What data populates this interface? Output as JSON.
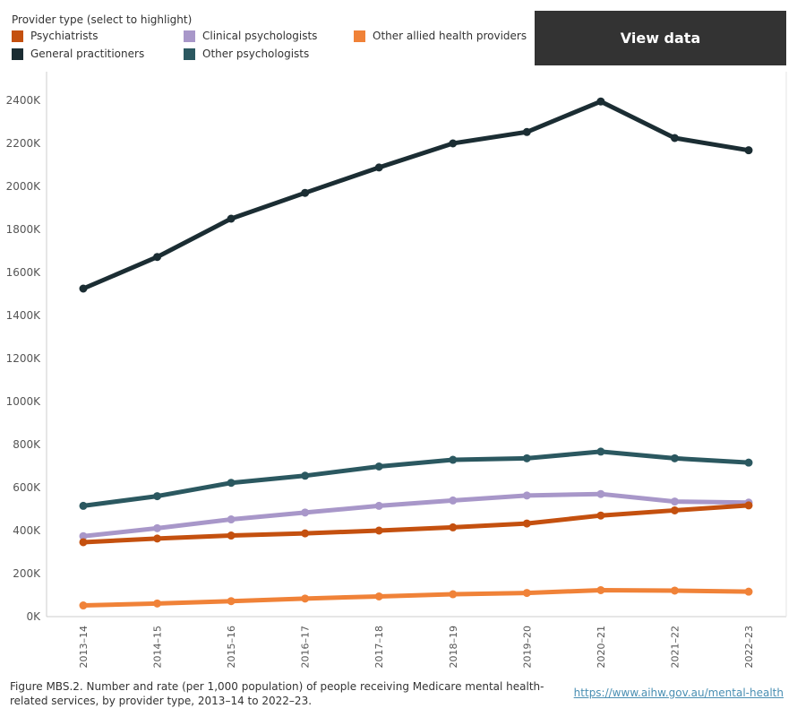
{
  "legend": {
    "title": "Provider type (select to highlight)",
    "items": [
      {
        "label": "Psychiatrists",
        "color": "#c4500f"
      },
      {
        "label": "Clinical psychologists",
        "color": "#a897c9"
      },
      {
        "label": "Other allied health providers",
        "color": "#f08238"
      },
      {
        "label": "General practitioners",
        "color": "#1b2d33"
      },
      {
        "label": "Other psychologists",
        "color": "#2b5860"
      }
    ]
  },
  "view_button": {
    "label": "View data"
  },
  "caption": "Figure MBS.2. Number and rate (per 1,000 population) of people receiving Medicare mental health-related services, by provider type, 2013–14 to 2022–23.",
  "source_link": "https://www.aihw.gov.au/mental-health",
  "chart_data": {
    "type": "line",
    "x": [
      "2013–14",
      "2014–15",
      "2015–16",
      "2016–17",
      "2017–18",
      "2018–19",
      "2019–20",
      "2020–21",
      "2021–22",
      "2022–23"
    ],
    "ylim": [
      0,
      2400000
    ],
    "yticks": [
      0,
      200000,
      400000,
      600000,
      800000,
      1000000,
      1200000,
      1400000,
      1600000,
      1800000,
      2000000,
      2200000,
      2400000
    ],
    "ytick_labels": [
      "0K",
      "200K",
      "400K",
      "600K",
      "800K",
      "1000K",
      "1200K",
      "1400K",
      "1600K",
      "1800K",
      "2000K",
      "2200K",
      "2400K"
    ],
    "series": [
      {
        "name": "General practitioners",
        "color": "#1b2d33",
        "values": [
          1525000,
          1672000,
          1850000,
          1970000,
          2088000,
          2200000,
          2253000,
          2395000,
          2225000,
          2168000
        ]
      },
      {
        "name": "Other psychologists",
        "color": "#2b5860",
        "values": [
          515000,
          560000,
          622000,
          655000,
          698000,
          729000,
          736000,
          767000,
          736000,
          716000
        ]
      },
      {
        "name": "Clinical psychologists",
        "color": "#a897c9",
        "values": [
          374000,
          411000,
          452000,
          484000,
          515000,
          540000,
          563000,
          570000,
          535000,
          530000
        ]
      },
      {
        "name": "Psychiatrists",
        "color": "#c4500f",
        "values": [
          346000,
          363000,
          377000,
          387000,
          400000,
          415000,
          433000,
          470000,
          494000,
          517000
        ]
      },
      {
        "name": "Other allied health providers",
        "color": "#f08238",
        "values": [
          52000,
          61000,
          72000,
          84000,
          94000,
          104000,
          110000,
          123000,
          121000,
          116000
        ]
      }
    ]
  }
}
